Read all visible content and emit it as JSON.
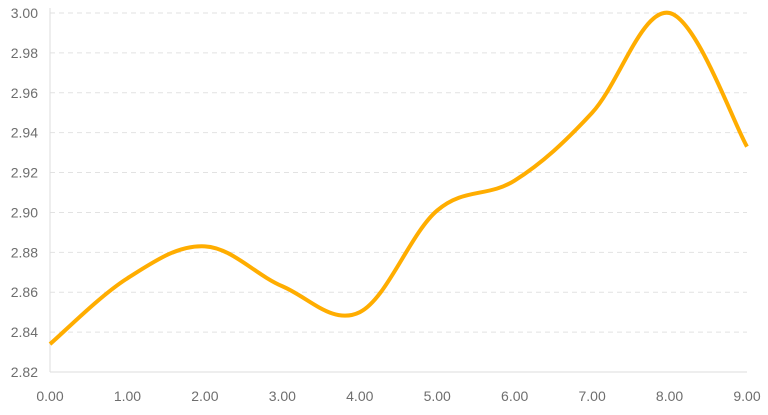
{
  "chart_data": {
    "type": "line",
    "title": "",
    "xlabel": "",
    "ylabel": "",
    "x": [
      0,
      1,
      2,
      3,
      4,
      5,
      6,
      7,
      8,
      9
    ],
    "series": [
      {
        "values": [
          2.834,
          2.867,
          2.883,
          2.863,
          2.85,
          2.901,
          2.916,
          2.95,
          3.0,
          2.933
        ],
        "color": "#ffad00"
      }
    ],
    "xlim": [
      0,
      9
    ],
    "ylim": [
      2.82,
      3.0
    ],
    "x_ticks": [
      "0.00",
      "1.00",
      "2.00",
      "3.00",
      "4.00",
      "5.00",
      "6.00",
      "7.00",
      "8.00",
      "9.00"
    ],
    "y_ticks": [
      "2.82",
      "2.84",
      "2.86",
      "2.88",
      "2.90",
      "2.92",
      "2.94",
      "2.96",
      "2.98",
      "3.00"
    ],
    "grid": "horizontal-dashed",
    "smooth": true,
    "legend": "none"
  }
}
